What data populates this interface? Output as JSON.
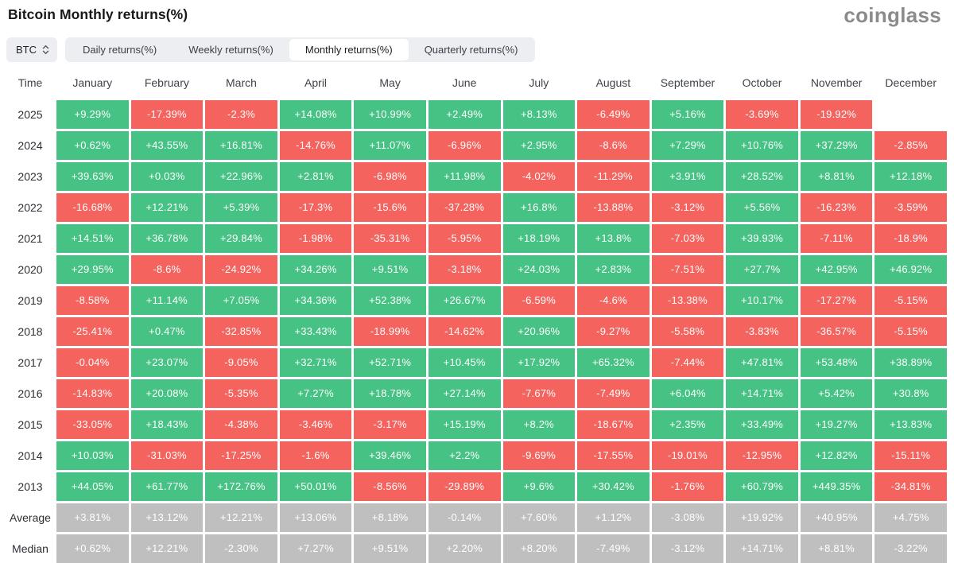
{
  "header": {
    "title": "Bitcoin Monthly returns(%)",
    "logo": "coinglass"
  },
  "controls": {
    "symbol": "BTC",
    "tabs": [
      {
        "label": "Daily returns(%)",
        "active": false
      },
      {
        "label": "Weekly returns(%)",
        "active": false
      },
      {
        "label": "Monthly returns(%)",
        "active": true
      },
      {
        "label": "Quarterly returns(%)",
        "active": false
      }
    ]
  },
  "colors": {
    "positive": "#45c284",
    "negative": "#f4635e",
    "neutral": "#bfbfbf"
  },
  "chart_data": {
    "type": "heatmap",
    "title": "Bitcoin Monthly returns(%)",
    "unit": "%",
    "columns": [
      "Time",
      "January",
      "February",
      "March",
      "April",
      "May",
      "June",
      "July",
      "August",
      "September",
      "October",
      "November",
      "December"
    ],
    "rows": [
      {
        "label": "2025",
        "summary": false,
        "values": [
          "+9.29%",
          "-17.39%",
          "-2.3%",
          "+14.08%",
          "+10.99%",
          "+2.49%",
          "+8.13%",
          "-6.49%",
          "+5.16%",
          "-3.69%",
          "-19.92%",
          ""
        ]
      },
      {
        "label": "2024",
        "summary": false,
        "values": [
          "+0.62%",
          "+43.55%",
          "+16.81%",
          "-14.76%",
          "+11.07%",
          "-6.96%",
          "+2.95%",
          "-8.6%",
          "+7.29%",
          "+10.76%",
          "+37.29%",
          "-2.85%"
        ]
      },
      {
        "label": "2023",
        "summary": false,
        "values": [
          "+39.63%",
          "+0.03%",
          "+22.96%",
          "+2.81%",
          "-6.98%",
          "+11.98%",
          "-4.02%",
          "-11.29%",
          "+3.91%",
          "+28.52%",
          "+8.81%",
          "+12.18%"
        ]
      },
      {
        "label": "2022",
        "summary": false,
        "values": [
          "-16.68%",
          "+12.21%",
          "+5.39%",
          "-17.3%",
          "-15.6%",
          "-37.28%",
          "+16.8%",
          "-13.88%",
          "-3.12%",
          "+5.56%",
          "-16.23%",
          "-3.59%"
        ]
      },
      {
        "label": "2021",
        "summary": false,
        "values": [
          "+14.51%",
          "+36.78%",
          "+29.84%",
          "-1.98%",
          "-35.31%",
          "-5.95%",
          "+18.19%",
          "+13.8%",
          "-7.03%",
          "+39.93%",
          "-7.11%",
          "-18.9%"
        ]
      },
      {
        "label": "2020",
        "summary": false,
        "values": [
          "+29.95%",
          "-8.6%",
          "-24.92%",
          "+34.26%",
          "+9.51%",
          "-3.18%",
          "+24.03%",
          "+2.83%",
          "-7.51%",
          "+27.7%",
          "+42.95%",
          "+46.92%"
        ]
      },
      {
        "label": "2019",
        "summary": false,
        "values": [
          "-8.58%",
          "+11.14%",
          "+7.05%",
          "+34.36%",
          "+52.38%",
          "+26.67%",
          "-6.59%",
          "-4.6%",
          "-13.38%",
          "+10.17%",
          "-17.27%",
          "-5.15%"
        ]
      },
      {
        "label": "2018",
        "summary": false,
        "values": [
          "-25.41%",
          "+0.47%",
          "-32.85%",
          "+33.43%",
          "-18.99%",
          "-14.62%",
          "+20.96%",
          "-9.27%",
          "-5.58%",
          "-3.83%",
          "-36.57%",
          "-5.15%"
        ]
      },
      {
        "label": "2017",
        "summary": false,
        "values": [
          "-0.04%",
          "+23.07%",
          "-9.05%",
          "+32.71%",
          "+52.71%",
          "+10.45%",
          "+17.92%",
          "+65.32%",
          "-7.44%",
          "+47.81%",
          "+53.48%",
          "+38.89%"
        ]
      },
      {
        "label": "2016",
        "summary": false,
        "values": [
          "-14.83%",
          "+20.08%",
          "-5.35%",
          "+7.27%",
          "+18.78%",
          "+27.14%",
          "-7.67%",
          "-7.49%",
          "+6.04%",
          "+14.71%",
          "+5.42%",
          "+30.8%"
        ]
      },
      {
        "label": "2015",
        "summary": false,
        "values": [
          "-33.05%",
          "+18.43%",
          "-4.38%",
          "-3.46%",
          "-3.17%",
          "+15.19%",
          "+8.2%",
          "-18.67%",
          "+2.35%",
          "+33.49%",
          "+19.27%",
          "+13.83%"
        ]
      },
      {
        "label": "2014",
        "summary": false,
        "values": [
          "+10.03%",
          "-31.03%",
          "-17.25%",
          "-1.6%",
          "+39.46%",
          "+2.2%",
          "-9.69%",
          "-17.55%",
          "-19.01%",
          "-12.95%",
          "+12.82%",
          "-15.11%"
        ]
      },
      {
        "label": "2013",
        "summary": false,
        "values": [
          "+44.05%",
          "+61.77%",
          "+172.76%",
          "+50.01%",
          "-8.56%",
          "-29.89%",
          "+9.6%",
          "+30.42%",
          "-1.76%",
          "+60.79%",
          "+449.35%",
          "-34.81%"
        ]
      },
      {
        "label": "Average",
        "summary": true,
        "values": [
          "+3.81%",
          "+13.12%",
          "+12.21%",
          "+13.06%",
          "+8.18%",
          "-0.14%",
          "+7.60%",
          "+1.12%",
          "-3.08%",
          "+19.92%",
          "+40.95%",
          "+4.75%"
        ]
      },
      {
        "label": "Median",
        "summary": true,
        "values": [
          "+0.62%",
          "+12.21%",
          "-2.30%",
          "+7.27%",
          "+9.51%",
          "+2.20%",
          "+8.20%",
          "-7.49%",
          "-3.12%",
          "+14.71%",
          "+8.81%",
          "-3.22%"
        ]
      }
    ]
  }
}
